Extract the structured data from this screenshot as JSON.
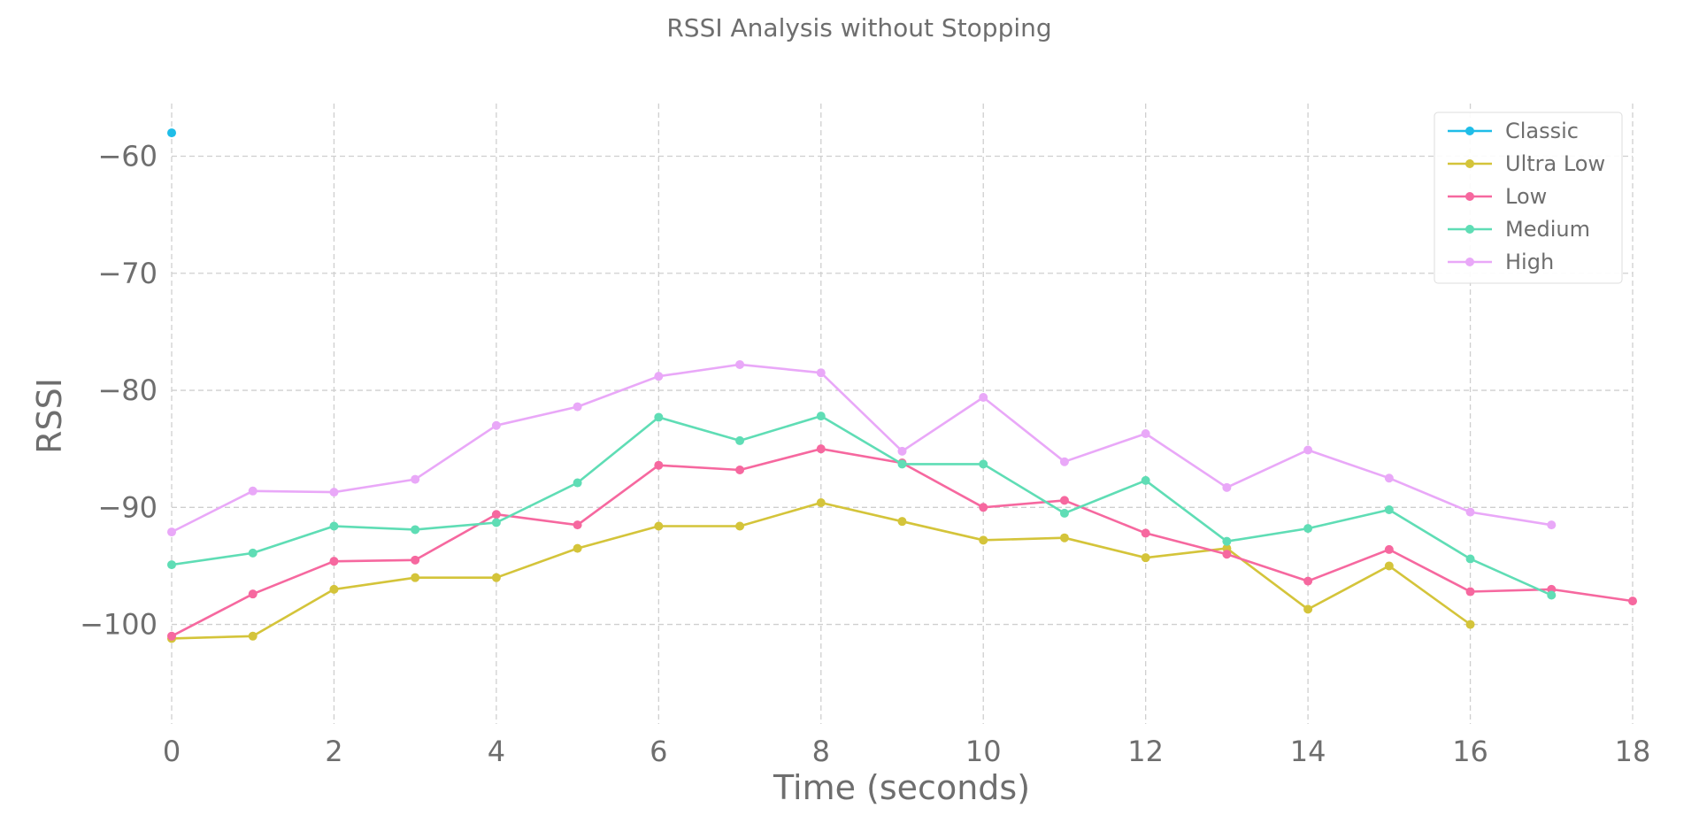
{
  "chart_data": {
    "type": "line",
    "title": "RSSI Analysis without Stopping",
    "xlabel": "Time (seconds)",
    "ylabel": "RSSI",
    "xlim": [
      0,
      18
    ],
    "ylim": [
      -108.5,
      -55.5
    ],
    "x_ticks": [
      0,
      2,
      4,
      6,
      8,
      10,
      12,
      14,
      16,
      18
    ],
    "y_ticks": [
      -60,
      -70,
      -80,
      -90,
      -100
    ],
    "x_tick_labels": [
      "0",
      "2",
      "4",
      "6",
      "8",
      "10",
      "12",
      "14",
      "16",
      "18"
    ],
    "y_tick_labels": [
      "−60",
      "−70",
      "−80",
      "−90",
      "−100"
    ],
    "grid": true,
    "legend_position": "top-right",
    "series": [
      {
        "name": "Classic",
        "color": "#1fbde8",
        "points": [
          [
            0,
            -58
          ]
        ]
      },
      {
        "name": "Ultra Low",
        "color": "#d4c43a",
        "points": [
          [
            0,
            -101.2
          ],
          [
            1,
            -101
          ],
          [
            2,
            -97
          ],
          [
            3,
            -96
          ],
          [
            4,
            -96
          ],
          [
            5,
            -93.5
          ],
          [
            6,
            -91.6
          ],
          [
            7,
            -91.6
          ],
          [
            8,
            -89.6
          ],
          [
            9,
            -91.2
          ],
          [
            10,
            -92.8
          ],
          [
            11,
            -92.6
          ],
          [
            12,
            -94.3
          ],
          [
            13,
            -93.5
          ],
          [
            14,
            -98.7
          ],
          [
            15,
            -95
          ],
          [
            16,
            -100
          ]
        ]
      },
      {
        "name": "Low",
        "color": "#f6689f",
        "points": [
          [
            0,
            -101
          ],
          [
            1,
            -97.4
          ],
          [
            2,
            -94.6
          ],
          [
            3,
            -94.5
          ],
          [
            4,
            -90.6
          ],
          [
            5,
            -91.5
          ],
          [
            6,
            -86.4
          ],
          [
            7,
            -86.8
          ],
          [
            8,
            -85
          ],
          [
            9,
            -86.2
          ],
          [
            10,
            -90
          ],
          [
            11,
            -89.4
          ],
          [
            12,
            -92.2
          ],
          [
            13,
            -94
          ],
          [
            14,
            -96.3
          ],
          [
            15,
            -93.6
          ],
          [
            16,
            -97.2
          ],
          [
            17,
            -97
          ],
          [
            18,
            -98
          ]
        ]
      },
      {
        "name": "Medium",
        "color": "#5fddb5",
        "points": [
          [
            0,
            -94.9
          ],
          [
            1,
            -93.9
          ],
          [
            2,
            -91.6
          ],
          [
            3,
            -91.9
          ],
          [
            4,
            -91.3
          ],
          [
            5,
            -87.9
          ],
          [
            6,
            -82.3
          ],
          [
            7,
            -84.3
          ],
          [
            8,
            -82.2
          ],
          [
            9,
            -86.3
          ],
          [
            10,
            -86.3
          ],
          [
            11,
            -90.5
          ],
          [
            12,
            -87.7
          ],
          [
            13,
            -92.9
          ],
          [
            14,
            -91.8
          ],
          [
            15,
            -90.2
          ],
          [
            16,
            -94.4
          ],
          [
            17,
            -97.5
          ]
        ]
      },
      {
        "name": "High",
        "color": "#e9a8f8",
        "points": [
          [
            0,
            -92.1
          ],
          [
            1,
            -88.6
          ],
          [
            2,
            -88.7
          ],
          [
            3,
            -87.6
          ],
          [
            4,
            -83
          ],
          [
            5,
            -81.4
          ],
          [
            6,
            -78.8
          ],
          [
            7,
            -77.8
          ],
          [
            8,
            -78.5
          ],
          [
            9,
            -85.2
          ],
          [
            10,
            -80.6
          ],
          [
            11,
            -86.1
          ],
          [
            12,
            -83.7
          ],
          [
            13,
            -88.3
          ],
          [
            14,
            -85.1
          ],
          [
            15,
            -87.5
          ],
          [
            16,
            -90.4
          ],
          [
            17,
            -91.5
          ]
        ]
      }
    ]
  }
}
